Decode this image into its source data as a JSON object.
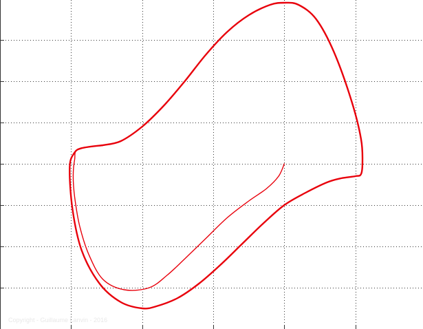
{
  "chart_data": {
    "type": "line",
    "title": "",
    "xlabel": "",
    "ylabel": "",
    "xlim": [
      -2,
      4
    ],
    "ylim": [
      -4,
      4
    ],
    "x_grid": [
      -1,
      0,
      1,
      2,
      3
    ],
    "y_grid": [
      -3,
      -2,
      -1,
      0,
      1,
      2,
      3
    ],
    "grid": true,
    "legend": "none",
    "color": "#e8000b",
    "series": [
      {
        "line_width": 1.4,
        "x": [
          2.0,
          1.92,
          1.75,
          1.5,
          1.2,
          0.9,
          0.6,
          0.35,
          0.1,
          -0.25,
          -0.55,
          -0.75,
          -0.88,
          -0.95,
          -0.97,
          -0.95,
          -0.9,
          -0.55
        ],
        "y": [
          0.0,
          -0.3,
          -0.6,
          -0.9,
          -1.3,
          -1.8,
          -2.3,
          -2.7,
          -3.0,
          -3.05,
          -2.8,
          -2.2,
          -1.5,
          -0.8,
          -0.3,
          0.1,
          0.35,
          0.45
        ]
      },
      {
        "line_width": 2.4,
        "x": [
          -0.55,
          -0.3,
          0.0,
          0.3,
          0.6,
          0.9,
          1.2,
          1.5,
          1.8,
          2.0,
          2.2,
          2.45,
          2.7,
          2.95,
          3.08,
          3.1,
          3.08,
          3.0,
          2.8,
          2.6,
          2.3,
          2.0,
          1.7,
          1.4,
          1.1,
          0.8,
          0.5,
          0.2,
          0.0,
          -0.3,
          -0.6,
          -0.85,
          -0.98,
          -1.02,
          -0.96,
          -0.85,
          -0.55
        ],
        "y": [
          0.45,
          0.55,
          0.9,
          1.4,
          2.0,
          2.65,
          3.2,
          3.6,
          3.85,
          3.9,
          3.85,
          3.5,
          2.7,
          1.5,
          0.6,
          0.05,
          -0.25,
          -0.3,
          -0.35,
          -0.45,
          -0.7,
          -1.0,
          -1.45,
          -1.95,
          -2.45,
          -2.9,
          -3.25,
          -3.45,
          -3.5,
          -3.35,
          -2.9,
          -2.1,
          -1.1,
          -0.1,
          0.25,
          0.38,
          0.45
        ]
      }
    ]
  },
  "watermark": "Copyright - Guillaume Lanvin - 2016"
}
